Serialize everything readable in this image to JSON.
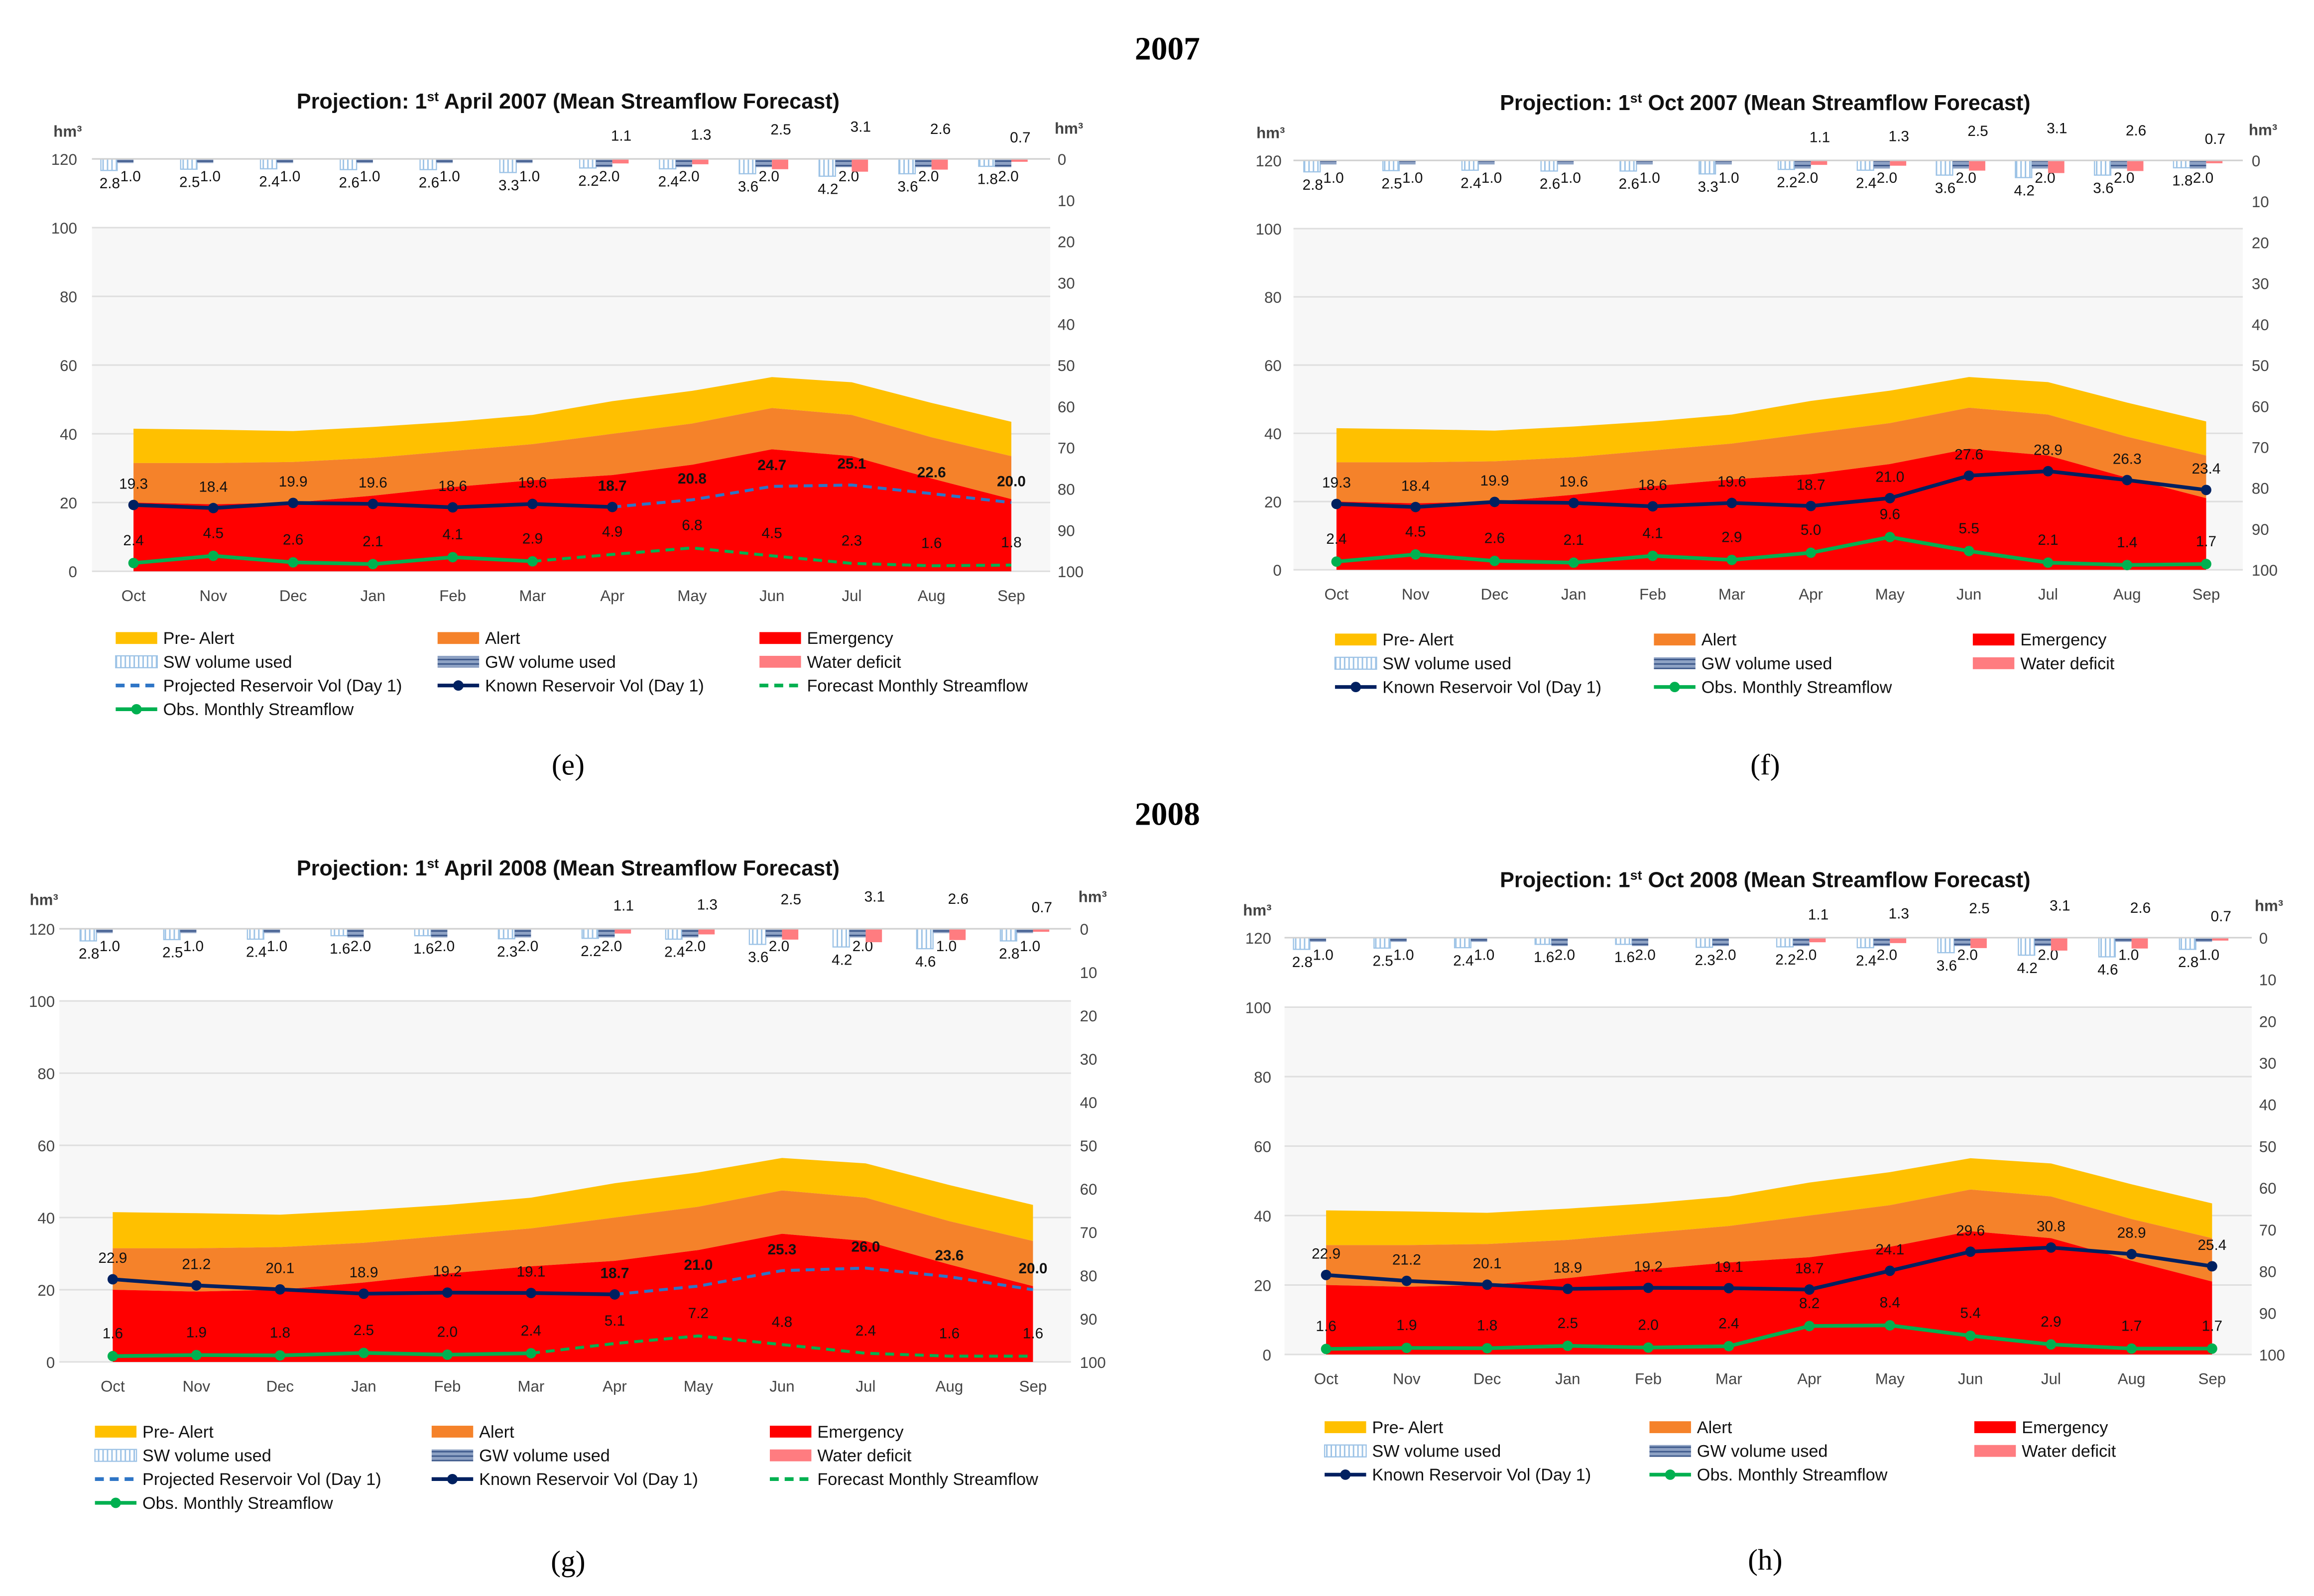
{
  "headings": {
    "year_2007": "2007",
    "year_2008": "2008"
  },
  "chart_data": [
    {
      "type": "area",
      "caption": "(e)",
      "title_pre": "Projection: 1",
      "title_sup": "st",
      "title_post": " April 2007 (Mean Streamflow Forecast)",
      "unit_left": "hm³",
      "unit_right": "hm³",
      "months": [
        "Oct",
        "Nov",
        "Dec",
        "Jan",
        "Feb",
        "Mar",
        "Apr",
        "May",
        "Jun",
        "Jul",
        "Aug",
        "Sep"
      ],
      "left_ticks": [
        "0",
        "20",
        "40",
        "60",
        "80",
        "100",
        "120"
      ],
      "right_ticks": [
        "0",
        "10",
        "20",
        "30",
        "40",
        "50",
        "60",
        "70",
        "80",
        "90",
        "100"
      ],
      "ylim_left": [
        0,
        120
      ],
      "ylim_right": [
        100,
        0
      ],
      "emergency": [
        20,
        19.5,
        20,
        22,
        24.5,
        26.5,
        28,
        31,
        35.5,
        33.5,
        27,
        21
      ],
      "alert": [
        31.5,
        31.5,
        31.8,
        33,
        35,
        37,
        40,
        43,
        47.5,
        45.5,
        39,
        33.5
      ],
      "pre_alert": [
        41.5,
        41.2,
        40.8,
        42,
        43.5,
        45.5,
        49.5,
        52.5,
        56.5,
        55,
        49,
        43.5
      ],
      "sw_used": [
        2.8,
        2.5,
        2.4,
        2.6,
        2.6,
        3.3,
        2.2,
        2.4,
        3.6,
        4.2,
        3.6,
        1.8
      ],
      "gw_used": [
        1.0,
        1.0,
        1.0,
        1.0,
        1.0,
        1.0,
        2.0,
        2.0,
        2.0,
        2.0,
        2.0,
        2.0
      ],
      "water_deficit": [
        0,
        0,
        0,
        0,
        0,
        0,
        1.1,
        1.3,
        2.5,
        3.1,
        2.6,
        0.7
      ],
      "reservoir": [
        19.3,
        18.4,
        19.9,
        19.6,
        18.6,
        19.6,
        18.7,
        20.8,
        24.7,
        25.1,
        22.6,
        20.0
      ],
      "reservoir_known_until": 6,
      "streamflow": [
        2.4,
        4.5,
        2.6,
        2.1,
        4.1,
        2.9,
        4.9,
        6.8,
        4.5,
        2.3,
        1.6,
        1.8
      ],
      "streamflow_observed_until": 5,
      "legend": [
        "Pre- Alert",
        "Alert",
        "Emergency",
        "SW volume used",
        "GW volume used",
        "Water deficit",
        "Projected Reservoir Vol (Day 1)",
        "Known Reservoir Vol (Day 1)",
        "Forecast Monthly Streamflow",
        "Obs. Monthly Streamflow"
      ],
      "legend_types": [
        "prealert",
        "alert",
        "emergency",
        "sw",
        "gw",
        "deficit",
        "projected",
        "known",
        "forecast",
        "obs"
      ]
    },
    {
      "type": "area",
      "caption": "(f)",
      "title_pre": "Projection: 1",
      "title_sup": "st",
      "title_post": " Oct 2007 (Mean Streamflow Forecast)",
      "unit_left": "hm³",
      "unit_right": "hm³",
      "months": [
        "Oct",
        "Nov",
        "Dec",
        "Jan",
        "Feb",
        "Mar",
        "Apr",
        "May",
        "Jun",
        "Jul",
        "Aug",
        "Sep"
      ],
      "left_ticks": [
        "0",
        "20",
        "40",
        "60",
        "80",
        "100",
        "120"
      ],
      "right_ticks": [
        "0",
        "10",
        "20",
        "30",
        "40",
        "50",
        "60",
        "70",
        "80",
        "90",
        "100"
      ],
      "ylim_left": [
        0,
        120
      ],
      "ylim_right": [
        100,
        0
      ],
      "emergency": [
        20,
        19.5,
        20,
        22,
        24.5,
        26.5,
        28,
        31,
        35.5,
        33.5,
        27,
        21
      ],
      "alert": [
        31.5,
        31.5,
        31.8,
        33,
        35,
        37,
        40,
        43,
        47.5,
        45.5,
        39,
        33.5
      ],
      "pre_alert": [
        41.5,
        41.2,
        40.8,
        42,
        43.5,
        45.5,
        49.5,
        52.5,
        56.5,
        55,
        49,
        43.5
      ],
      "sw_used": [
        2.8,
        2.5,
        2.4,
        2.6,
        2.6,
        3.3,
        2.2,
        2.4,
        3.6,
        4.2,
        3.6,
        1.8
      ],
      "gw_used": [
        1.0,
        1.0,
        1.0,
        1.0,
        1.0,
        1.0,
        2.0,
        2.0,
        2.0,
        2.0,
        2.0,
        2.0
      ],
      "water_deficit": [
        0,
        0,
        0,
        0,
        0,
        0,
        1.1,
        1.3,
        2.5,
        3.1,
        2.6,
        0.7
      ],
      "reservoir": [
        19.3,
        18.4,
        19.9,
        19.6,
        18.6,
        19.6,
        18.7,
        21.0,
        27.6,
        28.9,
        26.3,
        23.4
      ],
      "reservoir_known_until": 11,
      "streamflow": [
        2.4,
        4.5,
        2.6,
        2.1,
        4.1,
        2.9,
        5.0,
        9.6,
        5.5,
        2.1,
        1.4,
        1.7
      ],
      "streamflow_observed_until": 11,
      "legend": [
        "Pre- Alert",
        "Alert",
        "Emergency",
        "SW volume used",
        "GW volume used",
        "Water deficit",
        "Known Reservoir Vol (Day 1)",
        "Obs. Monthly Streamflow"
      ],
      "legend_types": [
        "prealert",
        "alert",
        "emergency",
        "sw",
        "gw",
        "deficit",
        "known",
        "obs"
      ]
    },
    {
      "type": "area",
      "caption": "(g)",
      "title_pre": "Projection: 1",
      "title_sup": "st",
      "title_post": " April 2008 (Mean Streamflow Forecast)",
      "unit_left": "hm³",
      "unit_right": "hm³",
      "months": [
        "Oct",
        "Nov",
        "Dec",
        "Jan",
        "Feb",
        "Mar",
        "Apr",
        "May",
        "Jun",
        "Jul",
        "Aug",
        "Sep"
      ],
      "left_ticks": [
        "0",
        "20",
        "40",
        "60",
        "80",
        "100",
        "120"
      ],
      "right_ticks": [
        "0",
        "10",
        "20",
        "30",
        "40",
        "50",
        "60",
        "70",
        "80",
        "90",
        "100"
      ],
      "ylim_left": [
        0,
        120
      ],
      "ylim_right": [
        100,
        0
      ],
      "emergency": [
        20,
        19.5,
        20,
        22,
        24.5,
        26.5,
        28,
        31,
        35.5,
        33.5,
        27,
        21
      ],
      "alert": [
        31.5,
        31.5,
        31.8,
        33,
        35,
        37,
        40,
        43,
        47.5,
        45.5,
        39,
        33.5
      ],
      "pre_alert": [
        41.5,
        41.2,
        40.8,
        42,
        43.5,
        45.5,
        49.5,
        52.5,
        56.5,
        55,
        49,
        43.5
      ],
      "sw_used": [
        2.8,
        2.5,
        2.4,
        1.6,
        1.6,
        2.3,
        2.2,
        2.4,
        3.6,
        4.2,
        4.6,
        2.8
      ],
      "gw_used": [
        1.0,
        1.0,
        1.0,
        2.0,
        2.0,
        2.0,
        2.0,
        2.0,
        2.0,
        2.0,
        1.0,
        1.0
      ],
      "water_deficit": [
        0,
        0,
        0,
        0,
        0,
        0,
        1.1,
        1.3,
        2.5,
        3.1,
        2.6,
        0.7
      ],
      "reservoir": [
        22.9,
        21.2,
        20.1,
        18.9,
        19.2,
        19.1,
        18.7,
        21.0,
        25.3,
        26.0,
        23.6,
        20.0
      ],
      "reservoir_known_until": 6,
      "streamflow": [
        1.6,
        1.9,
        1.8,
        2.5,
        2.0,
        2.4,
        5.1,
        7.2,
        4.8,
        2.4,
        1.6,
        1.6
      ],
      "streamflow_observed_until": 5,
      "legend": [
        "Pre- Alert",
        "Alert",
        "Emergency",
        "SW volume used",
        "GW volume used",
        "Water deficit",
        "Projected Reservoir Vol (Day 1)",
        "Known Reservoir Vol (Day 1)",
        "Forecast Monthly Streamflow",
        "Obs. Monthly Streamflow"
      ],
      "legend_types": [
        "prealert",
        "alert",
        "emergency",
        "sw",
        "gw",
        "deficit",
        "projected",
        "known",
        "forecast",
        "obs"
      ]
    },
    {
      "type": "area",
      "caption": "(h)",
      "title_pre": "Projection: 1",
      "title_sup": "st",
      "title_post": " Oct 2008 (Mean Streamflow Forecast)",
      "unit_left": "hm³",
      "unit_right": "hm³",
      "months": [
        "Oct",
        "Nov",
        "Dec",
        "Jan",
        "Feb",
        "Mar",
        "Apr",
        "May",
        "Jun",
        "Jul",
        "Aug",
        "Sep"
      ],
      "left_ticks": [
        "0",
        "20",
        "40",
        "60",
        "80",
        "100",
        "120"
      ],
      "right_ticks": [
        "0",
        "10",
        "20",
        "30",
        "40",
        "50",
        "60",
        "70",
        "80",
        "90",
        "100"
      ],
      "ylim_left": [
        0,
        120
      ],
      "ylim_right": [
        100,
        0
      ],
      "emergency": [
        20,
        19.5,
        20,
        22,
        24.5,
        26.5,
        28,
        31,
        35.5,
        33.5,
        27,
        21
      ],
      "alert": [
        31.5,
        31.5,
        31.8,
        33,
        35,
        37,
        40,
        43,
        47.5,
        45.5,
        39,
        33.5
      ],
      "pre_alert": [
        41.5,
        41.2,
        40.8,
        42,
        43.5,
        45.5,
        49.5,
        52.5,
        56.5,
        55,
        49,
        43.5
      ],
      "sw_used": [
        2.8,
        2.5,
        2.4,
        1.6,
        1.6,
        2.3,
        2.2,
        2.4,
        3.6,
        4.2,
        4.6,
        2.8
      ],
      "gw_used": [
        1.0,
        1.0,
        1.0,
        2.0,
        2.0,
        2.0,
        2.0,
        2.0,
        2.0,
        2.0,
        1.0,
        1.0
      ],
      "water_deficit": [
        0,
        0,
        0,
        0,
        0,
        0,
        1.1,
        1.3,
        2.5,
        3.1,
        2.6,
        0.7
      ],
      "reservoir": [
        22.9,
        21.2,
        20.1,
        18.9,
        19.2,
        19.1,
        18.7,
        24.1,
        29.6,
        30.8,
        28.9,
        25.4
      ],
      "reservoir_known_until": 11,
      "streamflow": [
        1.6,
        1.9,
        1.8,
        2.5,
        2.0,
        2.4,
        8.2,
        8.4,
        5.4,
        2.9,
        1.7,
        1.7
      ],
      "streamflow_observed_until": 11,
      "legend": [
        "Pre- Alert",
        "Alert",
        "Emergency",
        "SW volume used",
        "GW volume used",
        "Water deficit",
        "Known Reservoir Vol (Day 1)",
        "Obs. Monthly Streamflow"
      ],
      "legend_types": [
        "prealert",
        "alert",
        "emergency",
        "sw",
        "gw",
        "deficit",
        "known",
        "obs"
      ]
    }
  ],
  "colors": {
    "pre_alert": "#ffc000",
    "alert": "#f5822a",
    "emergency": "#ff0000",
    "sw": "#9dc3e6",
    "gw": "#6f86ad",
    "deficit": "#ff7c80",
    "known": "#002060",
    "projected": "#2e75c6",
    "obs": "#00b050"
  }
}
